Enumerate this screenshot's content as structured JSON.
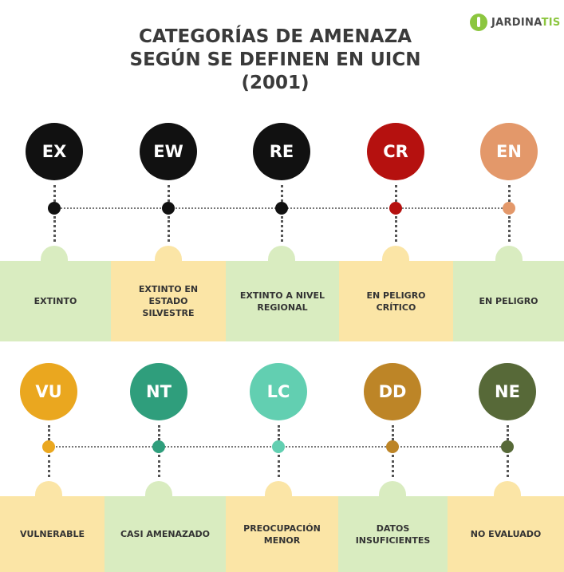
{
  "brand": {
    "part1": "JARDINA",
    "part2": "TIS"
  },
  "title": [
    "CATEGORÍAS DE AMENAZA",
    "SEGÚN SE DEFINEN EN UICN",
    "(2001)"
  ],
  "colors": {
    "green_box": "#d9ecc0",
    "yellow_box": "#fbe5a6",
    "line": "#555555"
  },
  "row1": [
    {
      "code": "EX",
      "label": "EXTINTO",
      "color": "#111111",
      "box": "#d9ecc0"
    },
    {
      "code": "EW",
      "label": "EXTINTO EN ESTADO SILVESTRE",
      "color": "#111111",
      "box": "#fbe5a6"
    },
    {
      "code": "RE",
      "label": "EXTINTO A NIVEL REGIONAL",
      "color": "#111111",
      "box": "#d9ecc0"
    },
    {
      "code": "CR",
      "label": "EN PELIGRO CRÍTICO",
      "color": "#b5110f",
      "box": "#fbe5a6"
    },
    {
      "code": "EN",
      "label": "EN PELIGRO",
      "color": "#e3986a",
      "box": "#d9ecc0"
    }
  ],
  "row2": [
    {
      "code": "VU",
      "label": "VULNERABLE",
      "color": "#eaa71f",
      "box": "#fbe5a6"
    },
    {
      "code": "NT",
      "label": "CASI AMENAZADO",
      "color": "#2f9e7c",
      "box": "#d9ecc0"
    },
    {
      "code": "LC",
      "label": "PREOCUPACIÓN MENOR",
      "color": "#62cfb1",
      "box": "#fbe5a6"
    },
    {
      "code": "DD",
      "label": "DATOS INSUFICIENTES",
      "color": "#bd8527",
      "box": "#d9ecc0"
    },
    {
      "code": "NE",
      "label": "NO EVALUADO",
      "color": "#576938",
      "box": "#fbe5a6"
    }
  ]
}
